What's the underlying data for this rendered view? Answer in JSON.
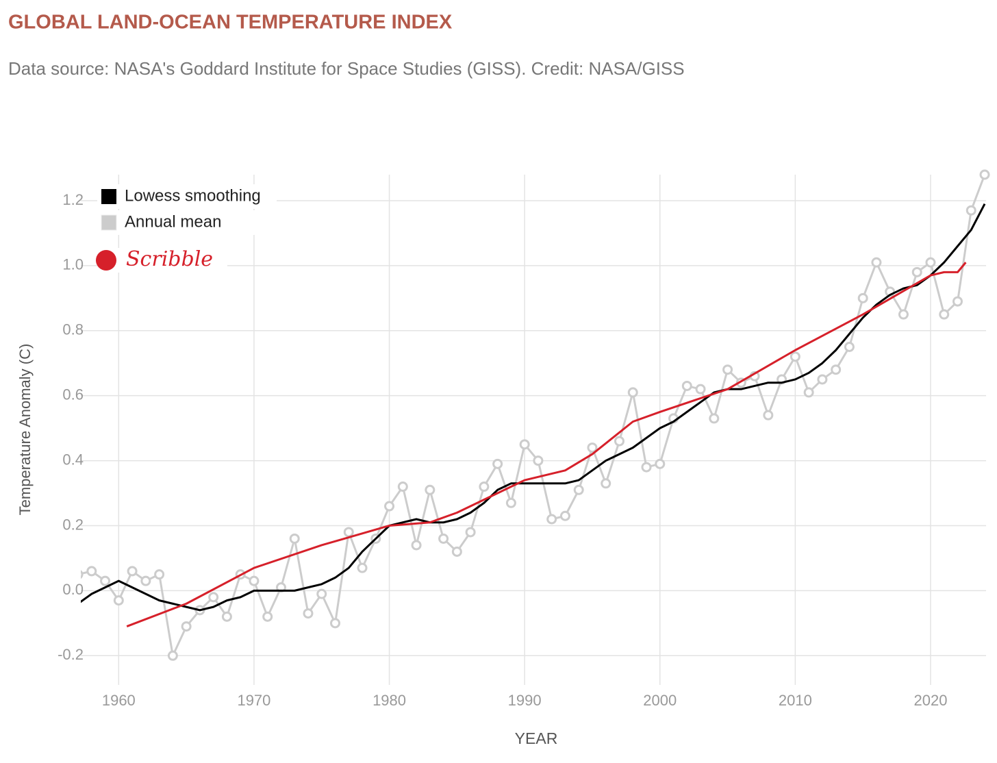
{
  "chart_data": {
    "type": "line",
    "title": "GLOBAL LAND-OCEAN TEMPERATURE INDEX",
    "subtitle": "Data source: NASA's Goddard Institute for Space Studies (GISS). Credit: NASA/GISS",
    "x_label": "YEAR",
    "y_label": "Temperature Anomaly (C)",
    "xlim": [
      1957.2,
      2024.1
    ],
    "ylim": [
      -0.29,
      1.28
    ],
    "xticks": [
      1960,
      1970,
      1980,
      1990,
      2000,
      2010,
      2020
    ],
    "yticks": [
      -0.2,
      {
        "value": 0,
        "label": "0.0"
      },
      0.2,
      0.4,
      0.6,
      0.8,
      {
        "value": 1,
        "label": "1.0"
      },
      1.2
    ],
    "grid": true,
    "legend": "top-left",
    "series": [
      {
        "name": "Lowess smoothing",
        "color": "#000000",
        "x": [
          1957,
          1958,
          1959,
          1960,
          1961,
          1962,
          1963,
          1964,
          1965,
          1966,
          1967,
          1968,
          1969,
          1970,
          1971,
          1972,
          1973,
          1974,
          1975,
          1976,
          1977,
          1978,
          1979,
          1980,
          1981,
          1982,
          1983,
          1984,
          1985,
          1986,
          1987,
          1988,
          1989,
          1990,
          1991,
          1992,
          1993,
          1994,
          1995,
          1996,
          1997,
          1998,
          1999,
          2000,
          2001,
          2002,
          2003,
          2004,
          2005,
          2006,
          2007,
          2008,
          2009,
          2010,
          2011,
          2012,
          2013,
          2014,
          2015,
          2016,
          2017,
          2018,
          2019,
          2020,
          2021,
          2022,
          2023,
          2024
        ],
        "values": [
          -0.04,
          -0.01,
          0.01,
          0.03,
          0.01,
          -0.01,
          -0.03,
          -0.04,
          -0.05,
          -0.06,
          -0.05,
          -0.03,
          -0.02,
          0.0,
          0.0,
          0.0,
          0.0,
          0.01,
          0.02,
          0.04,
          0.07,
          0.12,
          0.16,
          0.2,
          0.21,
          0.22,
          0.21,
          0.21,
          0.22,
          0.24,
          0.27,
          0.31,
          0.33,
          0.33,
          0.33,
          0.33,
          0.33,
          0.34,
          0.37,
          0.4,
          0.42,
          0.44,
          0.47,
          0.5,
          0.52,
          0.55,
          0.58,
          0.61,
          0.62,
          0.62,
          0.63,
          0.64,
          0.64,
          0.65,
          0.67,
          0.7,
          0.74,
          0.79,
          0.84,
          0.88,
          0.91,
          0.93,
          0.94,
          0.97,
          1.01,
          1.06,
          1.11,
          1.19
        ]
      },
      {
        "name": "Annual mean",
        "color": "#cccccc",
        "x": [
          1957,
          1958,
          1959,
          1960,
          1961,
          1962,
          1963,
          1964,
          1965,
          1966,
          1967,
          1968,
          1969,
          1970,
          1971,
          1972,
          1973,
          1974,
          1975,
          1976,
          1977,
          1978,
          1979,
          1980,
          1981,
          1982,
          1983,
          1984,
          1985,
          1986,
          1987,
          1988,
          1989,
          1990,
          1991,
          1992,
          1993,
          1994,
          1995,
          1996,
          1997,
          1998,
          1999,
          2000,
          2001,
          2002,
          2003,
          2004,
          2005,
          2006,
          2007,
          2008,
          2009,
          2010,
          2011,
          2012,
          2013,
          2014,
          2015,
          2016,
          2017,
          2018,
          2019,
          2020,
          2021,
          2022,
          2023,
          2024
        ],
        "values": [
          0.05,
          0.06,
          0.03,
          -0.03,
          0.06,
          0.03,
          0.05,
          -0.2,
          -0.11,
          -0.06,
          -0.02,
          -0.08,
          0.05,
          0.03,
          -0.08,
          0.01,
          0.16,
          -0.07,
          -0.01,
          -0.1,
          0.18,
          0.07,
          0.16,
          0.26,
          0.32,
          0.14,
          0.31,
          0.16,
          0.12,
          0.18,
          0.32,
          0.39,
          0.27,
          0.45,
          0.4,
          0.22,
          0.23,
          0.31,
          0.44,
          0.33,
          0.46,
          0.61,
          0.38,
          0.39,
          0.53,
          0.63,
          0.62,
          0.53,
          0.68,
          0.64,
          0.66,
          0.54,
          0.65,
          0.72,
          0.61,
          0.65,
          0.68,
          0.75,
          0.9,
          1.01,
          0.92,
          0.85,
          0.98,
          1.01,
          0.85,
          0.89,
          1.17,
          1.28
        ]
      },
      {
        "name": "Scribble",
        "color": "#d6202a",
        "x": [
          1960.6,
          1965,
          1970,
          1975,
          1980,
          1983,
          1985,
          1990,
          1993,
          1995,
          1998,
          2000,
          2005,
          2010,
          2015,
          2020,
          2021,
          2022,
          2022.6
        ],
        "values": [
          -0.11,
          -0.04,
          0.07,
          0.14,
          0.2,
          0.21,
          0.24,
          0.34,
          0.37,
          0.42,
          0.52,
          0.55,
          0.62,
          0.74,
          0.85,
          0.97,
          0.98,
          0.98,
          1.01
        ]
      }
    ]
  }
}
